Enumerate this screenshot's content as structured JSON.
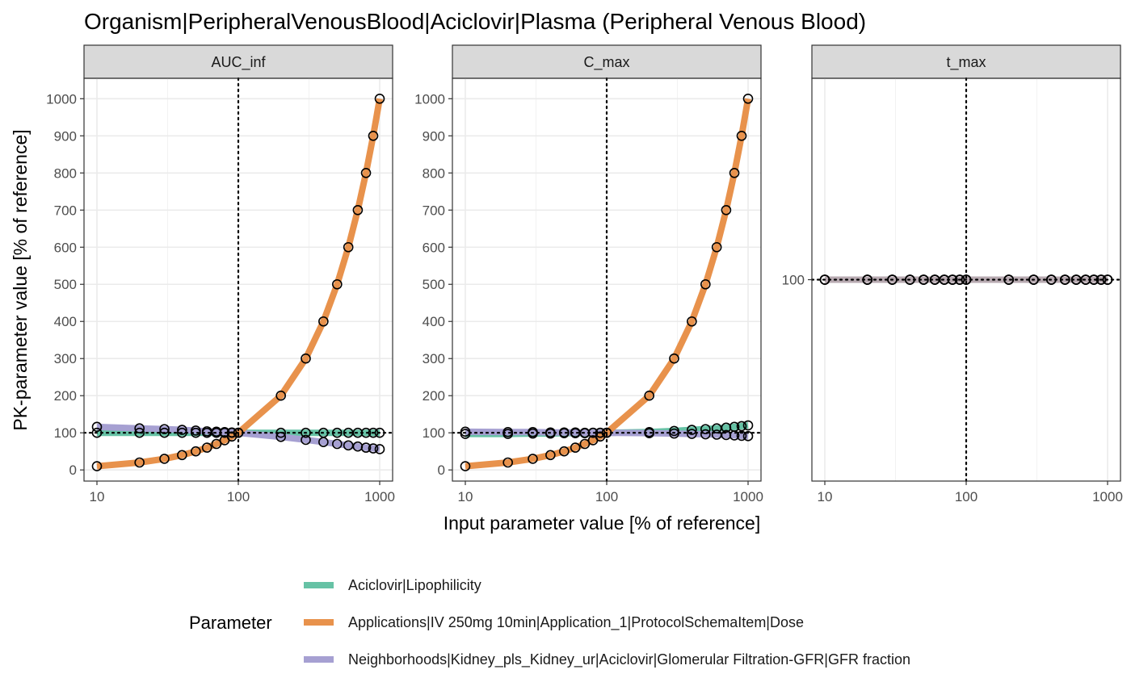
{
  "chart_data": {
    "type": "line",
    "title": "Organism|PeripheralVenousBlood|Aciclovir|Plasma (Peripheral Venous Blood)",
    "xlabel": "Input parameter value [% of reference]",
    "ylabel": "PK-parameter value [% of reference]",
    "x_scale": "log10",
    "x_ticks": [
      "10",
      "100",
      "1000"
    ],
    "reference_x": 100,
    "reference_y": 100,
    "legend": {
      "title": "Parameter",
      "placement": "bottom",
      "entries": [
        {
          "label": "Aciclovir|Lipophilicity",
          "color": "#66C2A5"
        },
        {
          "label": "Applications|IV 250mg 10min|Application_1|ProtocolSchemaItem|Dose",
          "color": "#E8924C"
        },
        {
          "label": "Neighborhoods|Kidney_pls_Kidney_ur|Aciclovir|Glomerular Filtration-GFR|GFR fraction",
          "color": "#A6A0D2"
        }
      ]
    },
    "x": [
      10,
      20,
      30,
      40,
      50,
      60,
      70,
      80,
      90,
      100,
      200,
      300,
      400,
      500,
      600,
      700,
      800,
      900,
      1000
    ],
    "panels": [
      {
        "strip": "AUC_inf",
        "ylim": [
          -30,
          1055
        ],
        "y_ticks": [
          "0",
          "100",
          "200",
          "300",
          "400",
          "500",
          "600",
          "700",
          "800",
          "900",
          "1000"
        ],
        "series": [
          {
            "name": "Aciclovir|Lipophilicity",
            "color": "#66C2A5",
            "values": [
              100,
              100,
              100,
              100,
              100,
              100,
              100,
              100,
              100,
              100,
              100,
              100,
              100,
              100,
              100,
              100,
              100,
              100,
              100
            ]
          },
          {
            "name": "Neighborhoods|Kidney_pls_Kidney_ur|Aciclovir|Glomerular Filtration-GFR|GFR fraction",
            "color": "#A6A0D2",
            "values": [
              116,
              112,
              110,
              108,
              106,
              104,
              103,
              102,
              101,
              100,
              89,
              81,
              75,
              70,
              66,
              63,
              60,
              58,
              56
            ]
          },
          {
            "name": "Applications|IV 250mg 10min|Application_1|ProtocolSchemaItem|Dose",
            "color": "#E8924C",
            "values": [
              10,
              20,
              30,
              40,
              50,
              60,
              70,
              80,
              90,
              100,
              200,
              300,
              400,
              500,
              600,
              700,
              800,
              900,
              1000
            ]
          }
        ]
      },
      {
        "strip": "C_max",
        "ylim": [
          -30,
          1055
        ],
        "y_ticks": [
          "0",
          "100",
          "200",
          "300",
          "400",
          "500",
          "600",
          "700",
          "800",
          "900",
          "1000"
        ],
        "series": [
          {
            "name": "Aciclovir|Lipophilicity",
            "color": "#66C2A5",
            "values": [
              97,
              97,
              98,
              98,
              99,
              99,
              99,
              100,
              100,
              100,
              102,
              105,
              108,
              110,
              112,
              114,
              116,
              118,
              120
            ]
          },
          {
            "name": "Neighborhoods|Kidney_pls_Kidney_ur|Aciclovir|Glomerular Filtration-GFR|GFR fraction",
            "color": "#A6A0D2",
            "values": [
              103,
              102,
              102,
              101,
              101,
              101,
              100,
              100,
              100,
              100,
              99,
              98,
              97,
              96,
              95,
              94,
              93,
              92,
              91
            ]
          },
          {
            "name": "Applications|IV 250mg 10min|Application_1|ProtocolSchemaItem|Dose",
            "color": "#E8924C",
            "values": [
              10,
              20,
              30,
              40,
              50,
              60,
              70,
              80,
              90,
              100,
              200,
              300,
              400,
              500,
              600,
              700,
              800,
              900,
              1000
            ]
          }
        ]
      },
      {
        "strip": "t_max",
        "ylim": [
          0,
          200
        ],
        "y_ticks": [
          "100"
        ],
        "series": [
          {
            "name": "Aciclovir|Lipophilicity",
            "color": "#66C2A5",
            "values": [
              100,
              100,
              100,
              100,
              100,
              100,
              100,
              100,
              100,
              100,
              100,
              100,
              100,
              100,
              100,
              100,
              100,
              100,
              100
            ]
          },
          {
            "name": "Applications|IV 250mg 10min|Application_1|ProtocolSchemaItem|Dose",
            "color": "#E8924C",
            "values": [
              100,
              100,
              100,
              100,
              100,
              100,
              100,
              100,
              100,
              100,
              100,
              100,
              100,
              100,
              100,
              100,
              100,
              100,
              100
            ]
          },
          {
            "name": "Neighborhoods|Kidney_pls_Kidney_ur|Aciclovir|Glomerular Filtration-GFR|GFR fraction",
            "color": "#A6A0D2",
            "values": [
              100,
              100,
              100,
              100,
              100,
              100,
              100,
              100,
              100,
              100,
              100,
              100,
              100,
              100,
              100,
              100,
              100,
              100,
              100
            ]
          }
        ]
      }
    ]
  }
}
